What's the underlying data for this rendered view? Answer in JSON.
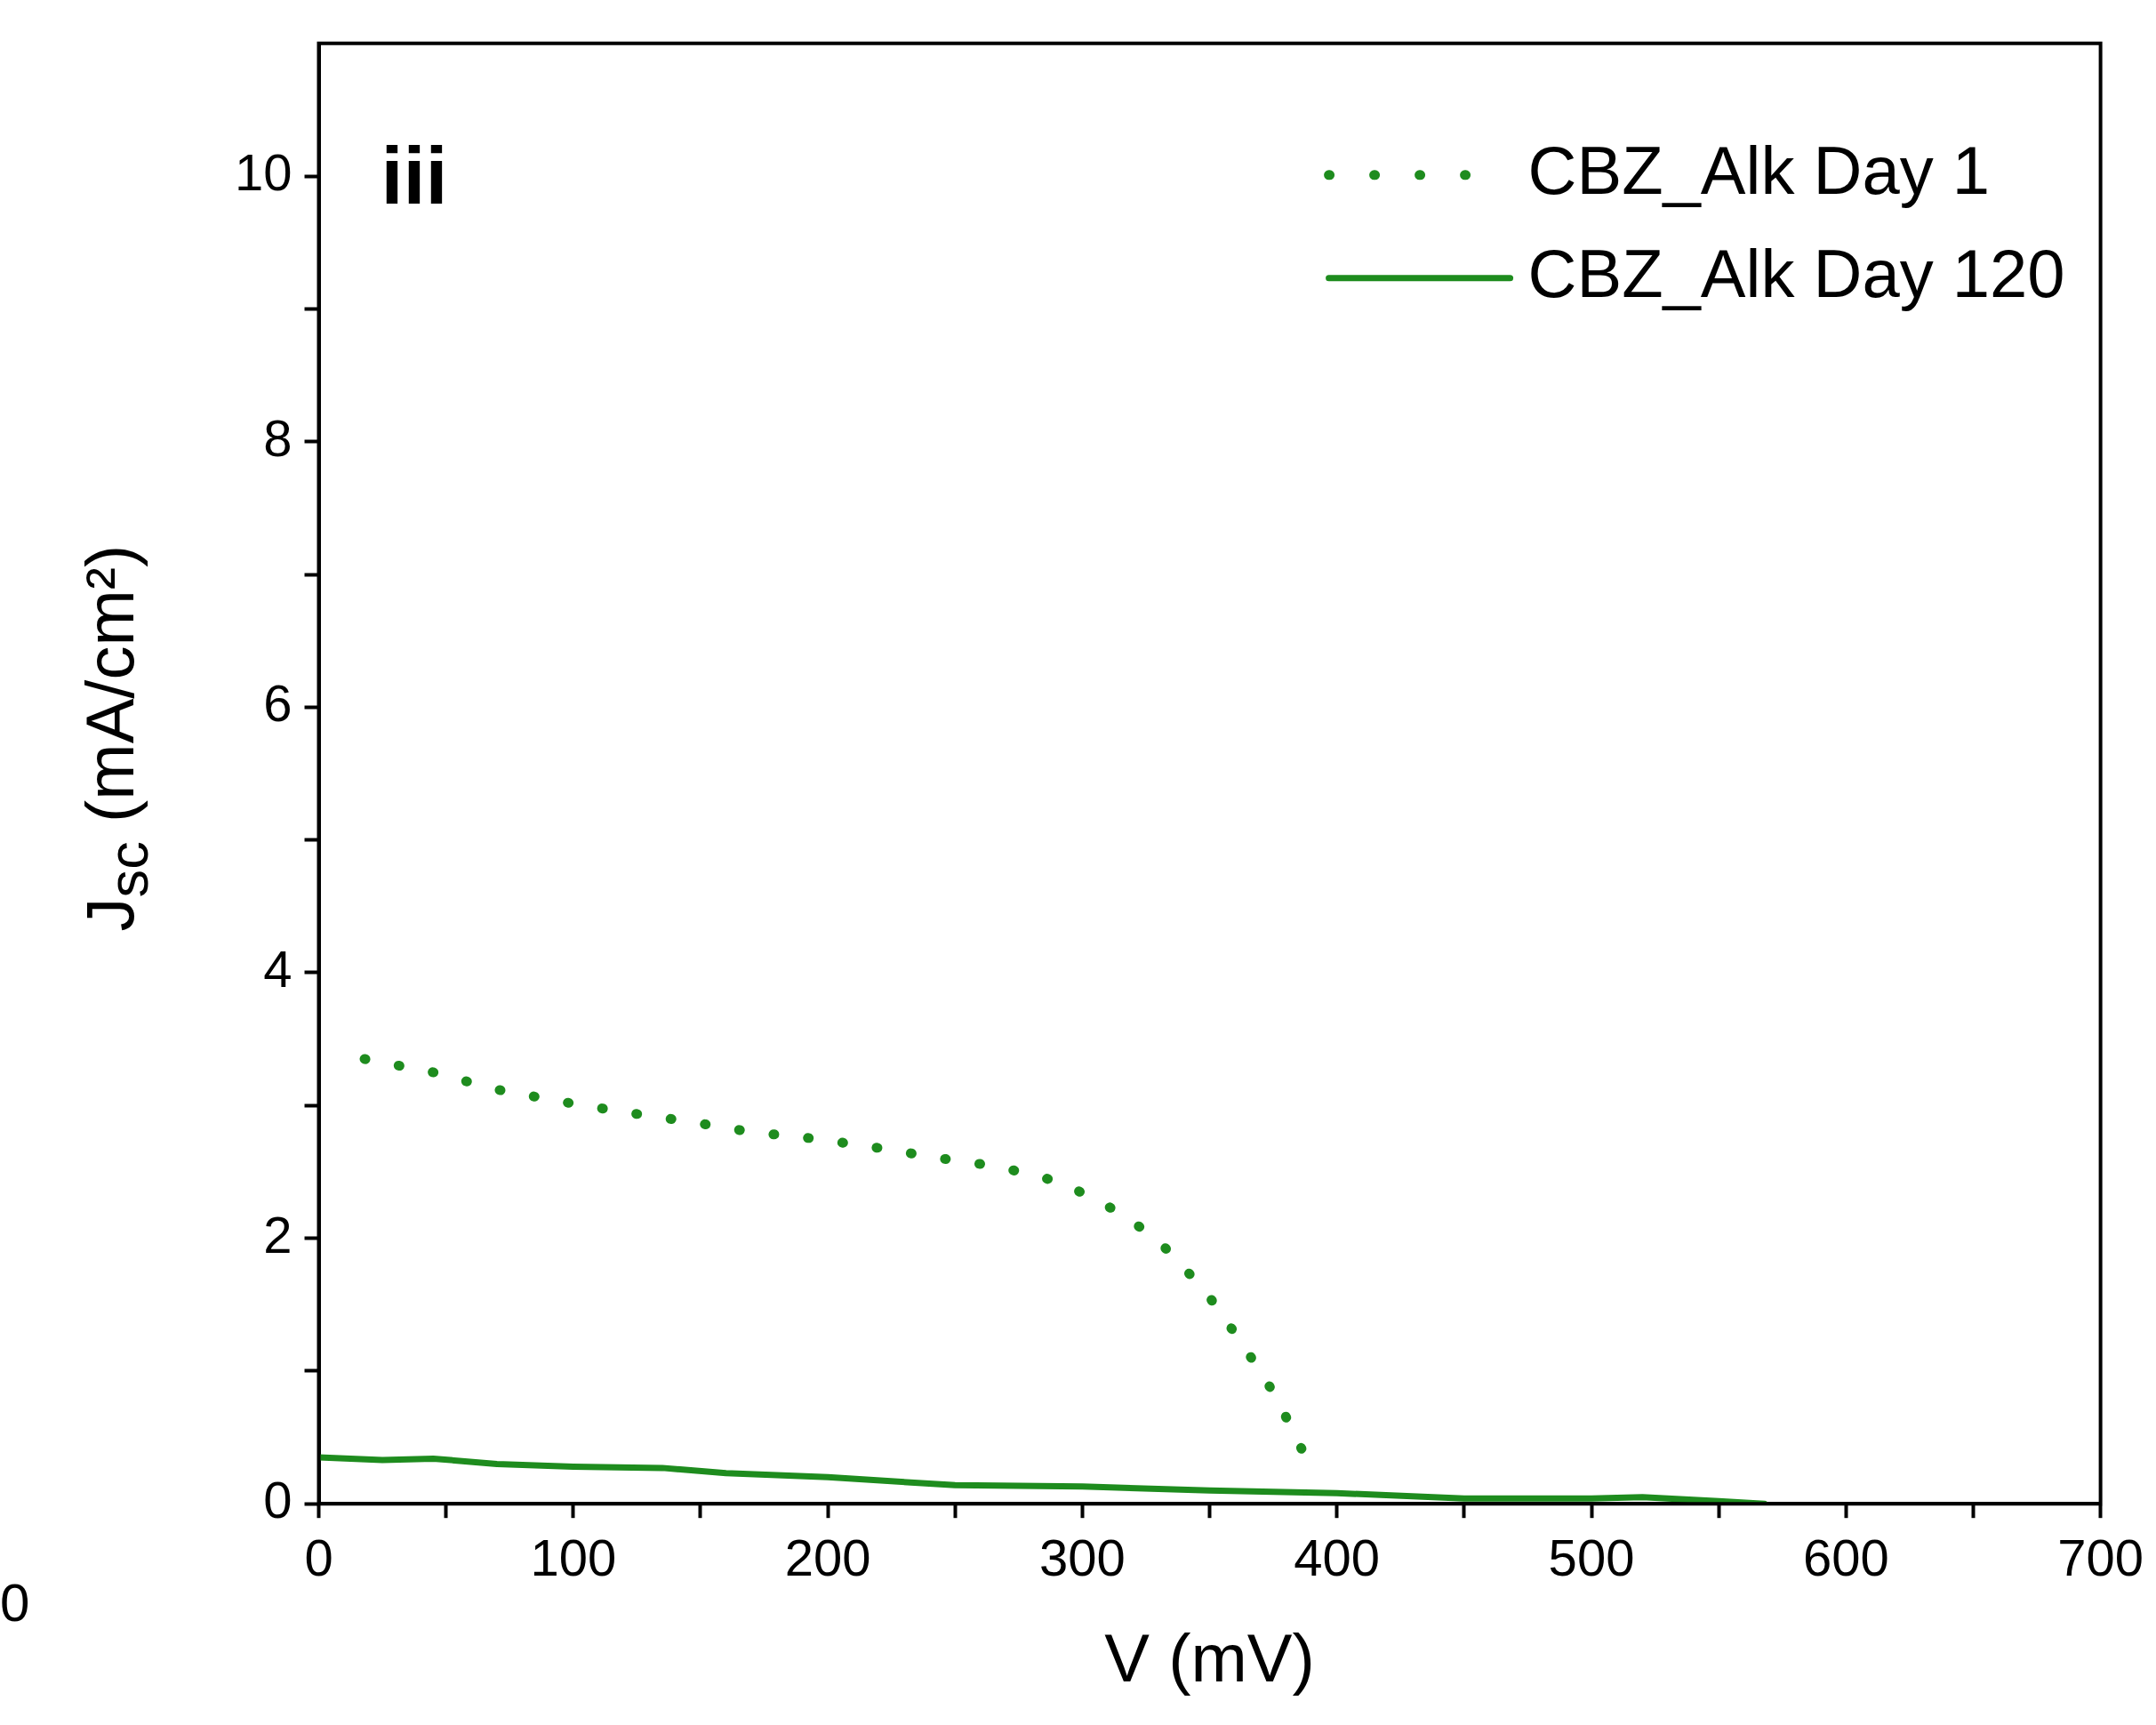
{
  "chart_data": {
    "type": "line",
    "xlabel": "V (mV)",
    "ylabel": "J$_{sc}$ (mA/cm²)",
    "annotations": [
      "iii",
      "0"
    ],
    "xlim": [
      0,
      700
    ],
    "xticks": [
      0,
      {
        "value": 50,
        "label": null
      },
      100,
      {
        "value": 150,
        "label": null
      },
      200,
      {
        "value": 250,
        "label": null
      },
      300,
      {
        "value": 350,
        "label": null
      },
      400,
      {
        "value": 450,
        "label": null
      },
      500,
      {
        "value": 550,
        "label": null
      },
      600,
      {
        "value": 650,
        "label": null
      },
      700
    ],
    "ylim": [
      0,
      11
    ],
    "yticks": [
      0,
      {
        "value": 1,
        "label": null
      },
      2,
      {
        "value": 3,
        "label": null
      },
      4,
      {
        "value": 5,
        "label": null
      },
      6,
      {
        "value": 7,
        "label": null
      },
      8,
      {
        "value": 9,
        "label": null
      },
      10
    ],
    "grid": false,
    "legend": "top right",
    "marker": "none",
    "series": [
      {
        "name": "CBZ_Alk Day 1",
        "color": "#1e8c1e",
        "line_style": "dotted",
        "x": [
          18,
          45,
          70,
          95,
          120,
          145,
          170,
          195,
          220,
          245,
          267,
          292,
          313,
          329,
          348,
          363,
          376,
          388
        ],
        "values": [
          3.35,
          3.25,
          3.12,
          3.03,
          2.95,
          2.88,
          2.8,
          2.75,
          2.68,
          2.6,
          2.54,
          2.42,
          2.21,
          2.0,
          1.61,
          1.2,
          0.81,
          0.34
        ]
      },
      {
        "name": "CBZ_Alk Day 120",
        "color": "#1e8c1e",
        "line_style": "solid",
        "x": [
          0,
          25,
          45,
          70,
          100,
          135,
          160,
          200,
          250,
          300,
          350,
          400,
          450,
          500,
          520,
          550,
          568
        ],
        "values": [
          0.35,
          0.33,
          0.34,
          0.3,
          0.28,
          0.27,
          0.23,
          0.2,
          0.14,
          0.13,
          0.1,
          0.08,
          0.04,
          0.04,
          0.05,
          0.02,
          0
        ]
      }
    ]
  }
}
